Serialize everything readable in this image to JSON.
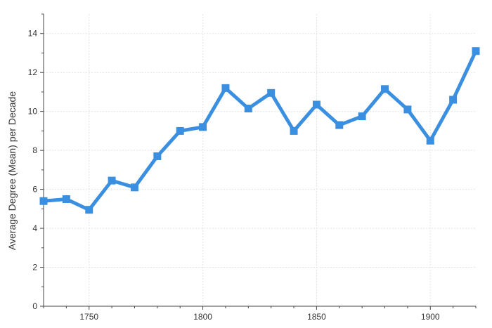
{
  "chart_data": {
    "type": "line",
    "title": "",
    "xlabel": "",
    "ylabel": "Average Degree (Mean) per Decade",
    "xlim": [
      1730,
      1920
    ],
    "ylim": [
      0,
      15
    ],
    "x_ticks": [
      1750,
      1800,
      1850,
      1900
    ],
    "y_ticks": [
      0,
      2,
      4,
      6,
      8,
      10,
      12,
      14
    ],
    "x_tick_labels": [
      "1750",
      "1800",
      "1850",
      "1900"
    ],
    "y_tick_labels": [
      "0",
      "2",
      "4",
      "6",
      "8",
      "10",
      "12",
      "14"
    ],
    "grid": true,
    "legend": "none",
    "line_color": "#3b8fe0",
    "series": [
      {
        "x": [
          1730,
          1740,
          1750,
          1760,
          1770,
          1780,
          1790,
          1800,
          1810,
          1820,
          1830,
          1840,
          1850,
          1860,
          1870,
          1880,
          1890,
          1900,
          1910,
          1920
        ],
        "values": [
          5.4,
          5.5,
          4.95,
          6.45,
          6.1,
          7.7,
          9.0,
          9.2,
          11.2,
          10.15,
          10.95,
          9.0,
          10.35,
          9.3,
          9.75,
          11.15,
          10.1,
          8.5,
          10.6,
          13.1
        ]
      }
    ]
  }
}
